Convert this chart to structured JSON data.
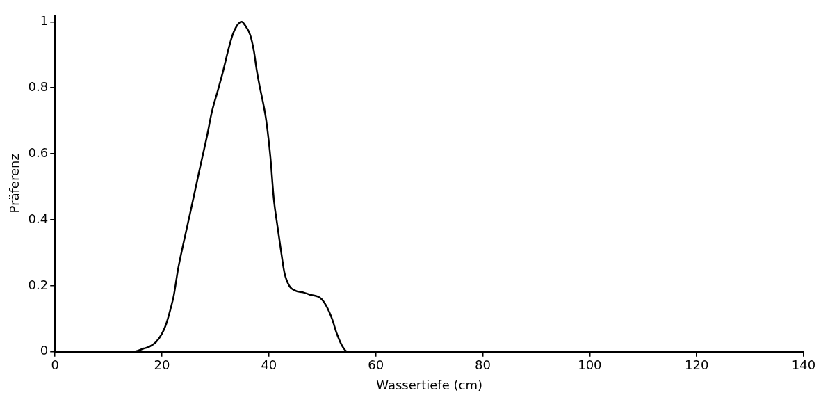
{
  "chart_data": {
    "type": "line",
    "xlabel": "Wassertiefe (cm)",
    "ylabel": "Präferenz",
    "xlim": [
      0,
      140
    ],
    "xticks": [
      0,
      20,
      40,
      60,
      80,
      100,
      120,
      140
    ],
    "ylim": [
      0,
      1.02
    ],
    "yticks": [
      0,
      0.2,
      0.4,
      0.6,
      0.8,
      1
    ],
    "grid": false,
    "legend": false,
    "marker": "none",
    "line_style": "solid",
    "series": [
      {
        "color": "#000000",
        "x": [
          0,
          11.5,
          14.6,
          16.6,
          17.6,
          18.9,
          20,
          20.8,
          21.6,
          22.2,
          23,
          24.1,
          25.4,
          27,
          28.5,
          29.3,
          30.5,
          31.5,
          32.4,
          33.2,
          34.1,
          34.9,
          35.5,
          36.5,
          37.2,
          37.7,
          38.2,
          38.9,
          39.5,
          40.3,
          40.9,
          41.6,
          42.4,
          42.9,
          43.8,
          45,
          46.4,
          47.7,
          49.7,
          50.7,
          51.8,
          52.7,
          53.8,
          54.7,
          59.2,
          140
        ],
        "values": [
          0,
          0,
          0,
          0.01,
          0.015,
          0.03,
          0.055,
          0.085,
          0.13,
          0.17,
          0.25,
          0.335,
          0.43,
          0.55,
          0.66,
          0.725,
          0.795,
          0.855,
          0.915,
          0.96,
          0.99,
          1.0,
          0.99,
          0.96,
          0.91,
          0.855,
          0.81,
          0.755,
          0.7,
          0.585,
          0.465,
          0.38,
          0.29,
          0.24,
          0.2,
          0.185,
          0.18,
          0.173,
          0.162,
          0.14,
          0.1,
          0.055,
          0.015,
          0,
          0,
          0
        ]
      }
    ]
  }
}
